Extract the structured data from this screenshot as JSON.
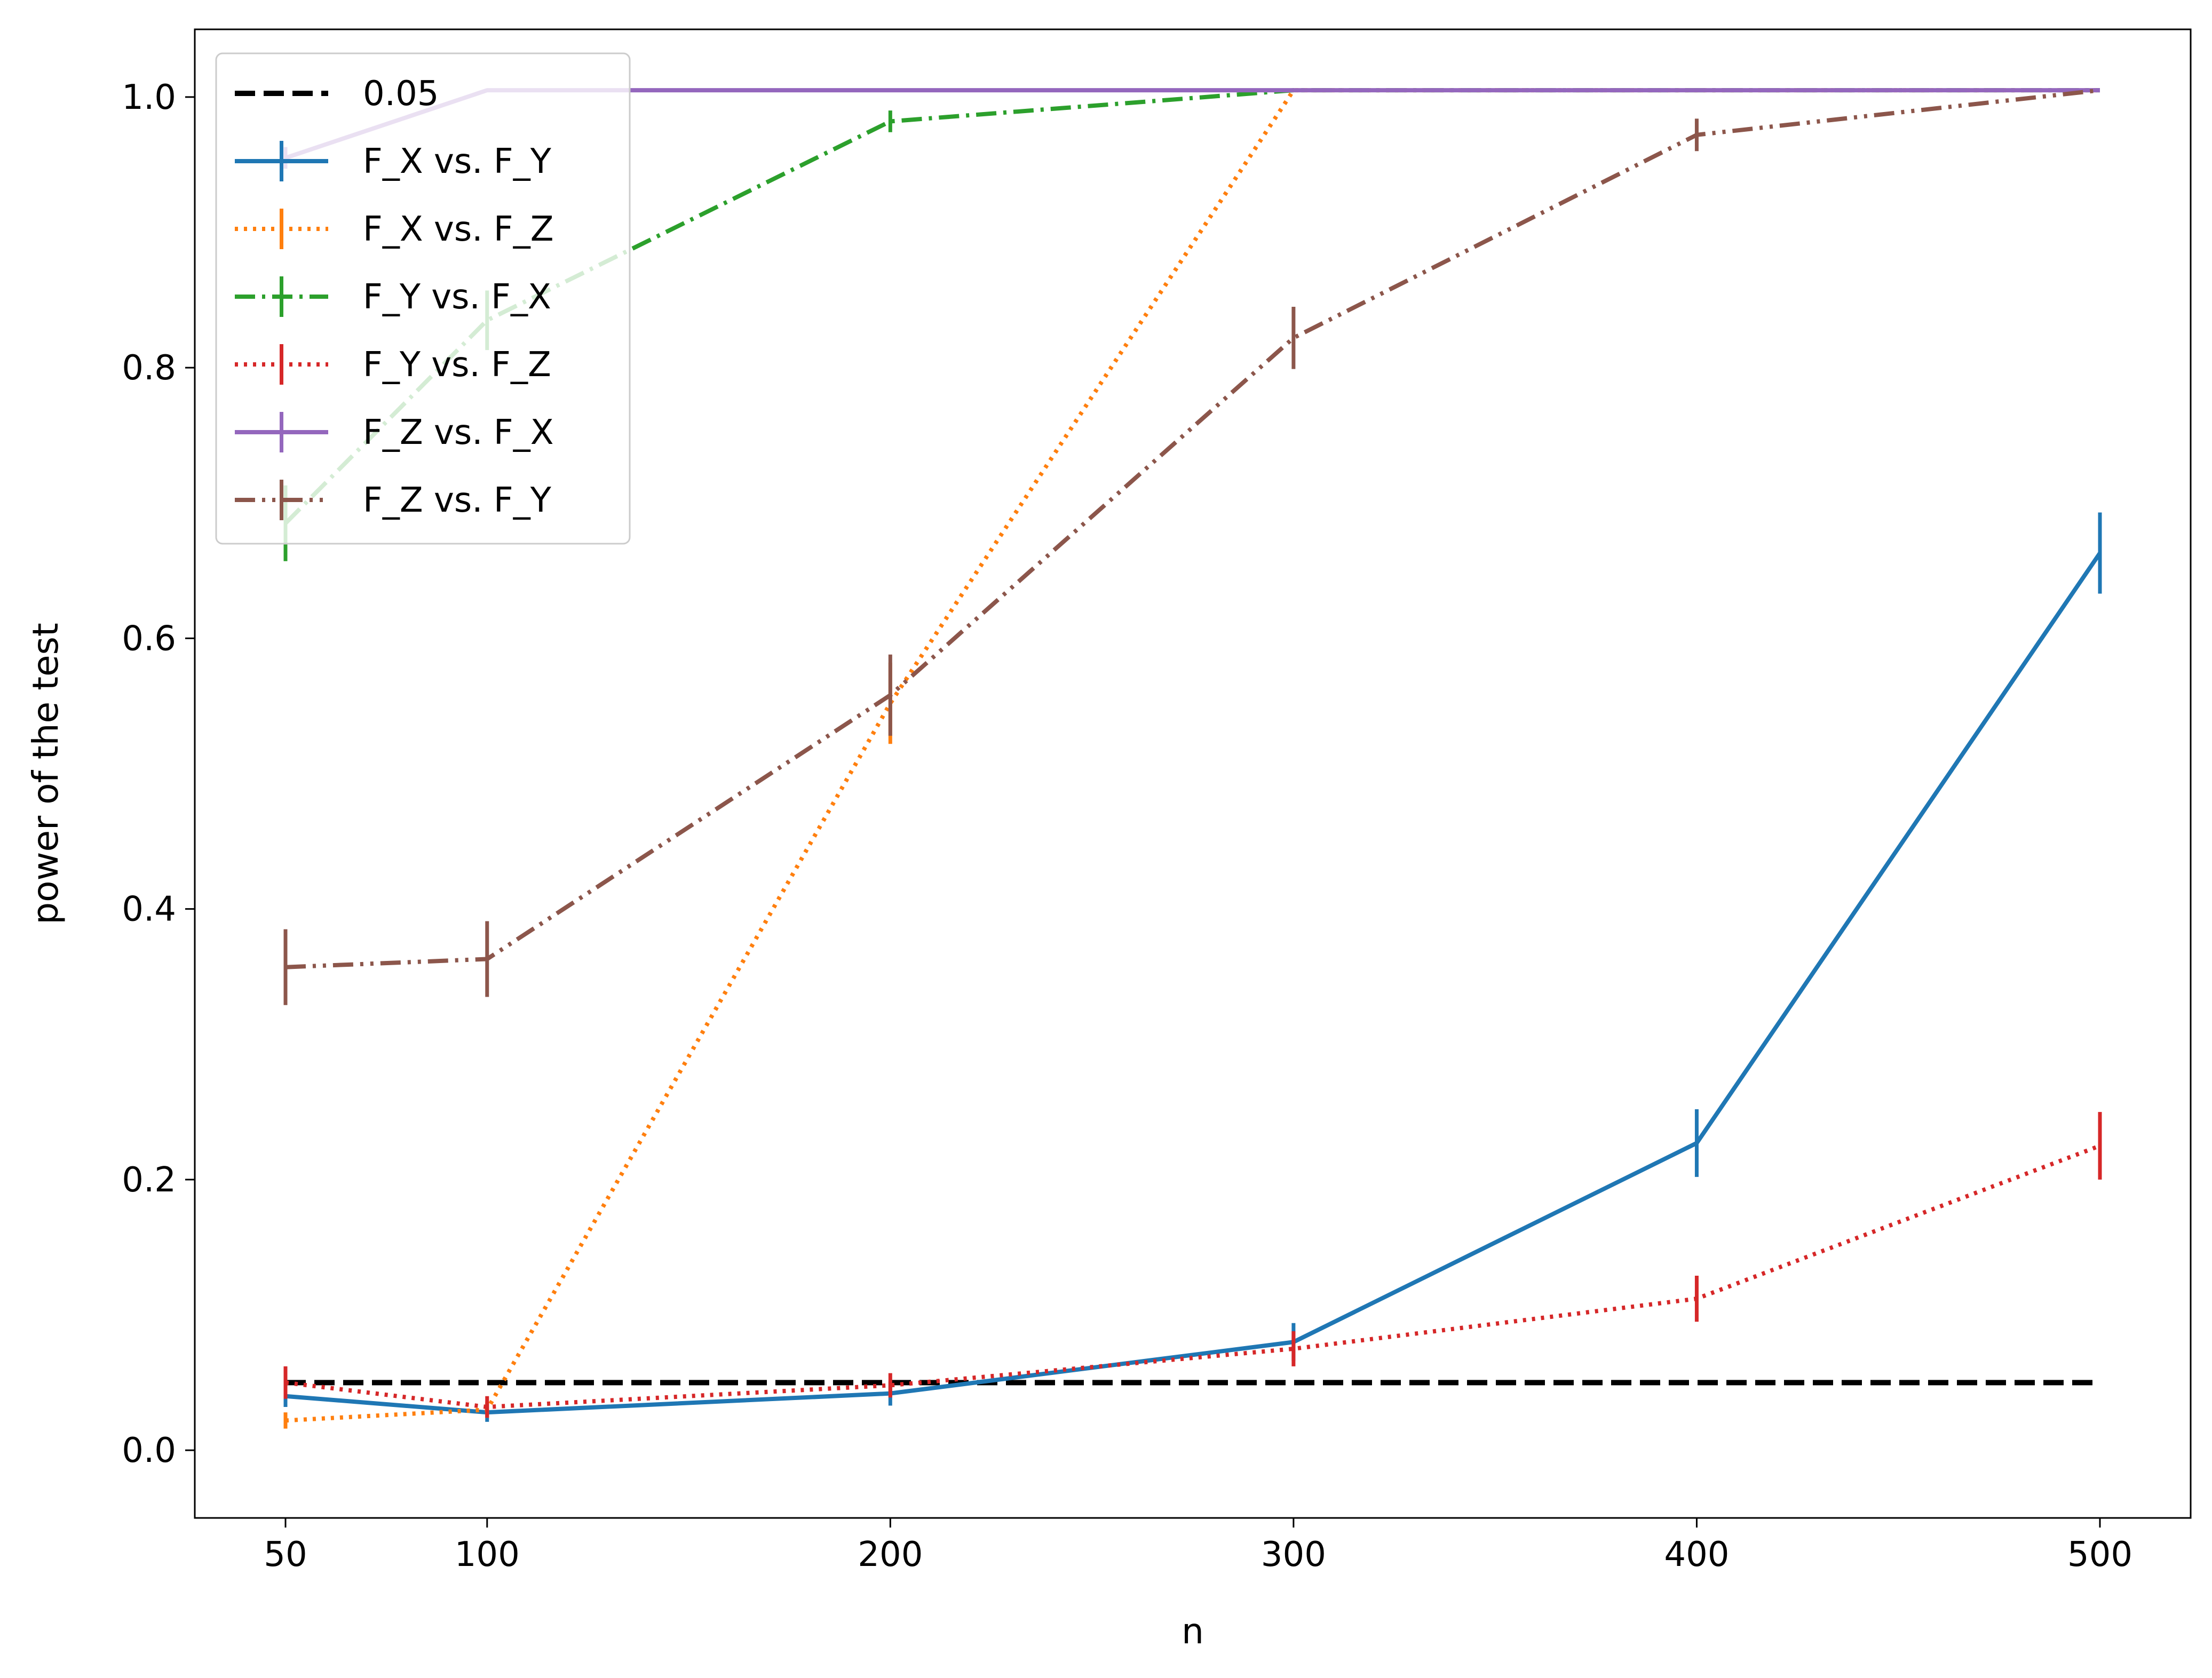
{
  "chart_data": {
    "type": "line",
    "title": "",
    "xlabel": "n",
    "ylabel": "power of the test",
    "xlim": [
      27.5,
      522.5
    ],
    "ylim": [
      -0.05,
      1.05
    ],
    "x_ticks": [
      50,
      100,
      200,
      300,
      400,
      500
    ],
    "x_tick_labels": [
      "50",
      "100",
      "200",
      "300",
      "400",
      "500"
    ],
    "y_ticks": [
      0.0,
      0.2,
      0.4,
      0.6,
      0.8,
      1.0
    ],
    "y_tick_labels": [
      "0.0",
      "0.2",
      "0.4",
      "0.6",
      "0.8",
      "1.0"
    ],
    "grid": false,
    "legend_position": "top-left",
    "reference_line": {
      "name": "0.05",
      "x": [
        50,
        500
      ],
      "y": 0.05,
      "color": "#000000",
      "style": "dashed"
    },
    "series": [
      {
        "name": "F_X vs. F_Y",
        "color": "#1f77b4",
        "style": "solid",
        "x": [
          50,
          100,
          200,
          300,
          400,
          500
        ],
        "values": [
          0.04,
          0.028,
          0.042,
          0.08,
          0.227,
          0.663
        ],
        "errors": [
          0.008,
          0.007,
          0.009,
          0.014,
          0.025,
          0.03
        ]
      },
      {
        "name": "F_X vs. F_Z",
        "color": "#ff7f0e",
        "style": "dotted",
        "x": [
          50,
          100,
          200,
          300,
          400,
          500
        ],
        "values": [
          0.022,
          0.03,
          0.552,
          1.005,
          1.005,
          1.005
        ],
        "errors": [
          0.006,
          0.006,
          0.03,
          0.0,
          0.0,
          0.0
        ]
      },
      {
        "name": "F_Y vs. F_X",
        "color": "#2ca02c",
        "style": "dashdot",
        "x": [
          50,
          100,
          200,
          300,
          400,
          500
        ],
        "values": [
          0.685,
          0.835,
          0.982,
          1.005,
          1.005,
          1.005
        ],
        "errors": [
          0.028,
          0.022,
          0.008,
          0.0,
          0.0,
          0.0
        ]
      },
      {
        "name": "F_Y vs. F_Z",
        "color": "#d62728",
        "style": "dotted",
        "x": [
          50,
          100,
          200,
          300,
          400,
          500
        ],
        "values": [
          0.05,
          0.032,
          0.048,
          0.075,
          0.112,
          0.225
        ],
        "errors": [
          0.012,
          0.008,
          0.009,
          0.013,
          0.017,
          0.025
        ]
      },
      {
        "name": "F_Z vs. F_X",
        "color": "#9467bd",
        "style": "solid",
        "x": [
          50,
          100,
          200,
          300,
          400,
          500
        ],
        "values": [
          0.955,
          1.005,
          1.005,
          1.005,
          1.005,
          1.005
        ],
        "errors": [
          0.008,
          0.0,
          0.0,
          0.0,
          0.0,
          0.0
        ]
      },
      {
        "name": "F_Z vs. F_Y",
        "color": "#8c564b",
        "style": "dashdotdot",
        "x": [
          50,
          100,
          200,
          300,
          400,
          500
        ],
        "values": [
          0.357,
          0.363,
          0.558,
          0.822,
          0.972,
          1.005
        ],
        "errors": [
          0.028,
          0.028,
          0.03,
          0.023,
          0.012,
          0.0
        ]
      }
    ]
  }
}
